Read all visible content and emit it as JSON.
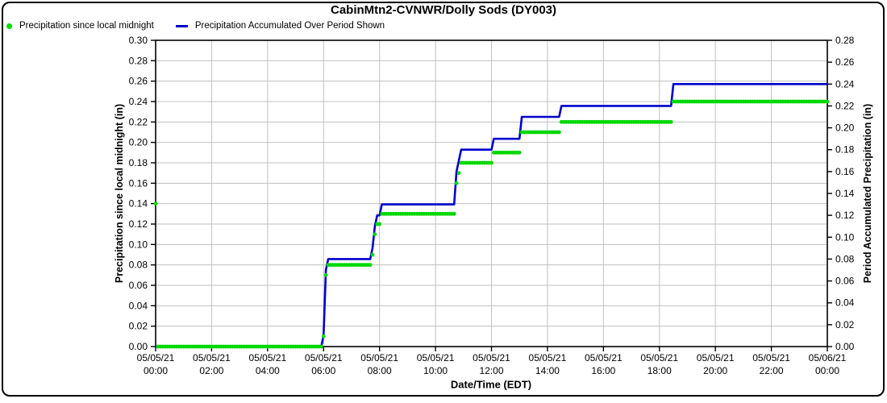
{
  "chart_data": {
    "type": "line",
    "title": "CabinMtn2-CVNWR/Dolly Sods (DY003)",
    "x_axis": {
      "label": "Date/Time (EDT)",
      "start_hour": 0,
      "end_hour": 24,
      "tick_interval_hours": 2,
      "grid": true,
      "tick_labels": [
        {
          "date": "05/05/21",
          "time": "00:00"
        },
        {
          "date": "05/05/21",
          "time": "02:00"
        },
        {
          "date": "05/05/21",
          "time": "04:00"
        },
        {
          "date": "05/05/21",
          "time": "06:00"
        },
        {
          "date": "05/05/21",
          "time": "08:00"
        },
        {
          "date": "05/05/21",
          "time": "10:00"
        },
        {
          "date": "05/05/21",
          "time": "12:00"
        },
        {
          "date": "05/05/21",
          "time": "14:00"
        },
        {
          "date": "05/05/21",
          "time": "16:00"
        },
        {
          "date": "05/05/21",
          "time": "18:00"
        },
        {
          "date": "05/05/21",
          "time": "20:00"
        },
        {
          "date": "05/05/21",
          "time": "22:00"
        },
        {
          "date": "05/06/21",
          "time": "00:00"
        }
      ]
    },
    "y_left": {
      "label": "Precipitation since local midnight (in)",
      "min": 0.0,
      "max": 0.3,
      "step": 0.02,
      "grid": true,
      "tick_labels": [
        "0.00",
        "0.02",
        "0.04",
        "0.06",
        "0.08",
        "0.10",
        "0.12",
        "0.14",
        "0.16",
        "0.18",
        "0.20",
        "0.22",
        "0.24",
        "0.26",
        "0.28",
        "0.30"
      ]
    },
    "y_right": {
      "label": "Period Accumulated Precipitation (in)",
      "min": 0.0,
      "max": 0.28,
      "step": 0.02,
      "tick_labels": [
        "0.00",
        "0.02",
        "0.04",
        "0.06",
        "0.08",
        "0.10",
        "0.12",
        "0.14",
        "0.16",
        "0.18",
        "0.20",
        "0.22",
        "0.24",
        "0.26",
        "0.28"
      ]
    },
    "sample_interval_minutes": 5,
    "step_segments": [
      {
        "from": "00:05",
        "to": "05:55",
        "value": 0.0
      },
      {
        "from": "06:00",
        "to": "06:00",
        "value": 0.01
      },
      {
        "from": "06:05",
        "to": "06:05",
        "value": 0.07
      },
      {
        "from": "06:10",
        "to": "07:40",
        "value": 0.08
      },
      {
        "from": "07:45",
        "to": "07:45",
        "value": 0.09
      },
      {
        "from": "07:50",
        "to": "07:50",
        "value": 0.11
      },
      {
        "from": "07:55",
        "to": "08:00",
        "value": 0.12
      },
      {
        "from": "08:05",
        "to": "10:40",
        "value": 0.13
      },
      {
        "from": "10:45",
        "to": "10:45",
        "value": 0.16
      },
      {
        "from": "10:50",
        "to": "10:50",
        "value": 0.17
      },
      {
        "from": "10:55",
        "to": "12:00",
        "value": 0.18
      },
      {
        "from": "12:05",
        "to": "13:00",
        "value": 0.19
      },
      {
        "from": "13:05",
        "to": "14:25",
        "value": 0.21
      },
      {
        "from": "14:30",
        "to": "18:25",
        "value": 0.22
      },
      {
        "from": "18:30",
        "to": "24:00",
        "value": 0.24
      }
    ],
    "series": [
      {
        "name": "Precipitation since local midnight",
        "type": "scatter",
        "axis": "left",
        "color": "#00d800",
        "start_value_at_midnight": 0.14
      },
      {
        "name": "Precipitation Accumulated Over Period Shown",
        "type": "line",
        "axis": "right",
        "color": "#0000cc",
        "start_value_at_midnight": 0.0
      }
    ],
    "colors": {
      "grid": "#c0c0c0",
      "frame": "#000000",
      "text": "#000000"
    }
  }
}
